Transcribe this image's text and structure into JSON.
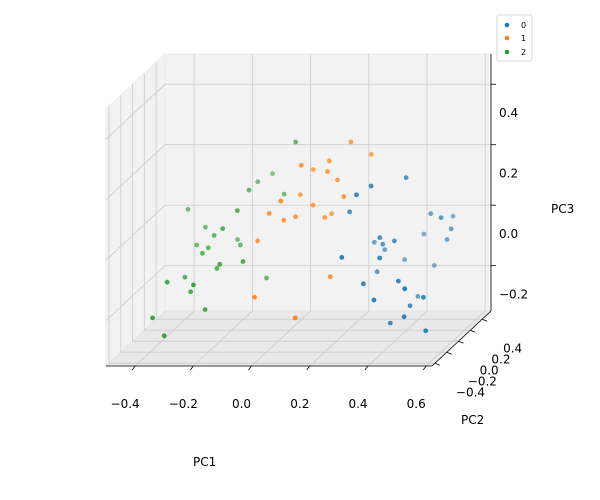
{
  "chart_data": {
    "type": "scatter",
    "projection": "3d",
    "xlabel": "PC1",
    "ylabel": "PC2",
    "zlabel": "PC3",
    "xlim": [
      -0.5,
      0.62
    ],
    "ylim": [
      -0.45,
      0.55
    ],
    "zlim": [
      -0.35,
      0.5
    ],
    "xticks": [
      -0.4,
      -0.2,
      0.0,
      0.2,
      0.4,
      0.6
    ],
    "yticks": [
      -0.4,
      -0.2,
      0.0,
      0.2,
      0.4
    ],
    "zticks": [
      -0.2,
      0.0,
      0.2,
      0.4
    ],
    "xtick_labels": [
      "−0.4",
      "−0.2",
      "0.0",
      "0.2",
      "0.4",
      "0.6"
    ],
    "ytick_labels": [
      "−0.4",
      "−0.2",
      "0.0",
      "0.2",
      "0.4"
    ],
    "ztick_labels": [
      "−0.2",
      "0.0",
      "0.2",
      "0.4"
    ],
    "grid": true,
    "legend_position": "top-right",
    "series": [
      {
        "name": "0",
        "color": "#1f77b4",
        "x": [
          0.32,
          0.36,
          0.45,
          0.3,
          0.5,
          0.55,
          0.41,
          0.47,
          0.38,
          0.42,
          0.4,
          0.36,
          0.3,
          0.43,
          0.49,
          0.51,
          0.52,
          0.56,
          0.58,
          0.34,
          0.33,
          0.54,
          0.57,
          0.44,
          0.48,
          0.53,
          0.46,
          0.39,
          0.37,
          0.27
        ],
        "y": [
          -0.25,
          -0.2,
          -0.05,
          0.15,
          0.12,
          0.05,
          -0.3,
          -0.28,
          -0.15,
          -0.1,
          -0.35,
          -0.33,
          -0.4,
          -0.22,
          -0.18,
          -0.38,
          -0.42,
          -0.3,
          -0.36,
          0.0,
          0.18,
          0.2,
          0.12,
          0.3,
          0.28,
          0.35,
          0.1,
          0.22,
          -0.05,
          -0.12
        ],
        "z": [
          0.18,
          0.2,
          0.2,
          -0.05,
          0.05,
          0.05,
          -0.02,
          -0.1,
          0.02,
          0.0,
          -0.15,
          -0.1,
          0.0,
          -0.25,
          -0.2,
          -0.2,
          -0.1,
          -0.15,
          -0.25,
          -0.12,
          -0.08,
          -0.05,
          0.0,
          -0.05,
          -0.15,
          0.0,
          -0.22,
          -0.12,
          -0.02,
          0.1
        ]
      },
      {
        "name": "1",
        "color": "#ff7f0e",
        "x": [
          0.1,
          0.18,
          0.24,
          0.05,
          0.12,
          0.2,
          0.02,
          0.15,
          0.08,
          -0.02,
          0.22,
          0.14,
          0.06,
          0.25,
          0.1,
          0.18,
          -0.05,
          0.0,
          0.3,
          0.16
        ],
        "y": [
          -0.1,
          -0.05,
          0.05,
          -0.2,
          0.0,
          0.02,
          0.0,
          0.05,
          -0.1,
          -0.3,
          -0.2,
          -0.4,
          0.08,
          -0.12,
          0.1,
          -0.02,
          -0.1,
          -0.15,
          0.1,
          0.12
        ],
        "z": [
          0.25,
          0.22,
          0.3,
          0.15,
          0.1,
          0.18,
          0.05,
          0.05,
          0.08,
          -0.15,
          -0.1,
          -0.2,
          0.12,
          0.15,
          0.2,
          0.25,
          0.0,
          0.1,
          0.25,
          0.05
        ]
      },
      {
        "name": "2",
        "color": "#2ca02c",
        "x": [
          -0.35,
          -0.3,
          -0.28,
          -0.25,
          -0.22,
          -0.2,
          -0.18,
          -0.15,
          -0.12,
          -0.1,
          -0.08,
          -0.05,
          -0.32,
          -0.26,
          -0.2,
          -0.15,
          -0.1,
          -0.35,
          -0.3,
          -0.22,
          -0.16,
          -0.25,
          0.05,
          -0.02,
          -0.08,
          -0.3
        ],
        "y": [
          0.2,
          0.1,
          0.15,
          0.05,
          0.0,
          -0.05,
          0.2,
          0.1,
          -0.1,
          0.0,
          -0.2,
          0.05,
          -0.3,
          -0.2,
          -0.25,
          -0.25,
          0.15,
          -0.4,
          -0.45,
          -0.35,
          -0.15,
          -0.05,
          0.05,
          0.2,
          0.3,
          -0.1
        ],
        "z": [
          0.05,
          -0.05,
          0.0,
          -0.05,
          0.0,
          -0.1,
          -0.05,
          -0.05,
          0.1,
          0.15,
          -0.05,
          -0.15,
          -0.1,
          -0.15,
          -0.2,
          -0.05,
          0.15,
          -0.2,
          -0.25,
          -0.1,
          0.05,
          -0.05,
          0.3,
          0.1,
          0.15,
          -0.12
        ]
      }
    ]
  }
}
